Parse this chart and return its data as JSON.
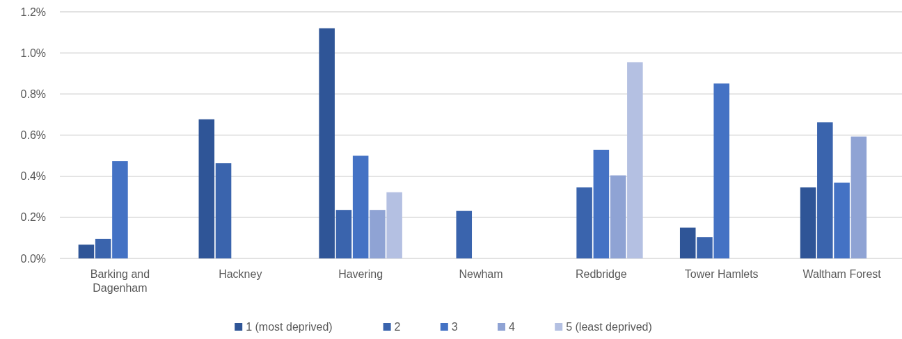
{
  "chart_data": {
    "type": "bar",
    "categories": [
      "Barking and Dagenham",
      "Hackney",
      "Havering",
      "Newham",
      "Redbridge",
      "Tower Hamlets",
      "Waltham Forest"
    ],
    "series": [
      {
        "name": "1 (most deprived)",
        "color": "#2f5597",
        "values": [
          0.067,
          0.677,
          1.12,
          null,
          null,
          0.15,
          0.346
        ]
      },
      {
        "name": "2",
        "color": "#3a64ad",
        "values": [
          0.095,
          0.463,
          0.236,
          0.231,
          0.346,
          0.104,
          0.662
        ]
      },
      {
        "name": "3",
        "color": "#4472c4",
        "values": [
          0.473,
          null,
          0.5,
          null,
          0.528,
          0.851,
          0.369
        ]
      },
      {
        "name": "4",
        "color": "#8fa3d4",
        "values": [
          null,
          null,
          0.236,
          null,
          0.404,
          null,
          0.593
        ]
      },
      {
        "name": "5 (least deprived)",
        "color": "#b4c0e2",
        "values": [
          null,
          null,
          0.322,
          null,
          0.955,
          null,
          null
        ]
      }
    ],
    "ylim": [
      0,
      1.2
    ],
    "yticks": [
      {
        "value": 0,
        "label": "0.0%"
      },
      {
        "value": 0.2,
        "label": "0.2%"
      },
      {
        "value": 0.4,
        "label": "0.4%"
      },
      {
        "value": 0.6,
        "label": "0.6%"
      },
      {
        "value": 0.8,
        "label": "0.8%"
      },
      {
        "value": 1.0,
        "label": "1.0%"
      },
      {
        "value": 1.2,
        "label": "1.2%"
      }
    ],
    "grid": "y",
    "legend": "bottom"
  }
}
